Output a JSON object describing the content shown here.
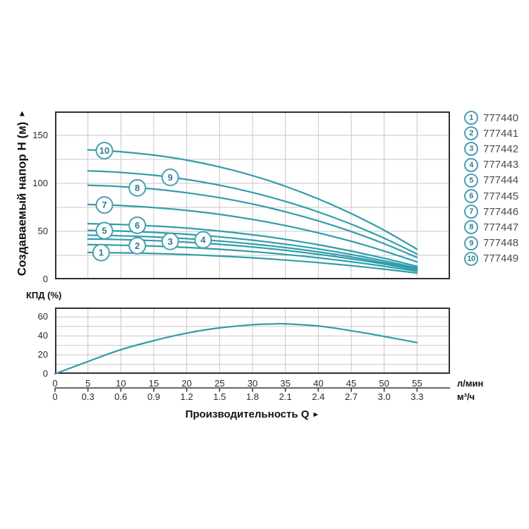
{
  "labels": {
    "y_axis_title": "Создаваемый напор H (м)",
    "y_axis_arrow": "▲",
    "x_axis_title": "Производительность Q",
    "x_axis_arrow": "►",
    "efficiency_title": "КПД (%)",
    "unit_lmin": "л/мин",
    "unit_m3h": "м³/ч"
  },
  "colors": {
    "curve": "#2f9daa",
    "grid": "#c7c7c7",
    "frame": "#2f2f2f",
    "tick_text": "#2b2b2b",
    "circle_stroke": "#4aa0b0",
    "circle_digit": "#2f7d8e",
    "circle_fill": "#ffffff",
    "legend_text": "#414d57",
    "axis_line": "#333333"
  },
  "legend": {
    "items": [
      {
        "num": "1",
        "model": "777440"
      },
      {
        "num": "2",
        "model": "777441"
      },
      {
        "num": "3",
        "model": "777442"
      },
      {
        "num": "4",
        "model": "777443"
      },
      {
        "num": "5",
        "model": "777444"
      },
      {
        "num": "6",
        "model": "777445"
      },
      {
        "num": "7",
        "model": "777446"
      },
      {
        "num": "8",
        "model": "777447"
      },
      {
        "num": "9",
        "model": "777448"
      },
      {
        "num": "10",
        "model": "777449"
      }
    ]
  },
  "chart_data": [
    {
      "type": "line",
      "title": "Напор-производительность (10 моделей)",
      "ylabel": "Создаваемый напор H (м)",
      "xlabel": "Производительность Q",
      "ylim": [
        0,
        175
      ],
      "xlim": [
        0,
        60
      ],
      "yticks": [
        0,
        50,
        100,
        150
      ],
      "ygrid_step": 25,
      "xgrid_step": 5,
      "grid": true,
      "legend_position": "right-outside",
      "x": [
        5,
        7.5,
        10,
        15,
        20,
        25,
        30,
        35,
        40,
        45,
        50,
        55
      ],
      "series": [
        {
          "name": "777440",
          "curve_label": "1",
          "label_x": 7,
          "values": [
            28.0,
            27.8,
            27.6,
            26.9,
            25.8,
            24.3,
            22.4,
            20.1,
            17.4,
            14.2,
            10.6,
            6.5
          ]
        },
        {
          "name": "777441",
          "curve_label": "2",
          "label_x": 12.5,
          "values": [
            36.1,
            35.9,
            35.5,
            34.6,
            33.2,
            31.3,
            28.9,
            25.9,
            22.4,
            18.3,
            13.6,
            8.4
          ]
        },
        {
          "name": "777442",
          "curve_label": "3",
          "label_x": 17.5,
          "values": [
            42.0,
            41.8,
            41.4,
            40.3,
            38.7,
            36.5,
            33.7,
            30.2,
            26.1,
            21.3,
            15.9,
            9.8
          ]
        },
        {
          "name": "777443",
          "curve_label": "4",
          "label_x": 22.5,
          "values": [
            46.0,
            45.8,
            45.4,
            44.2,
            42.4,
            39.9,
            36.8,
            33.1,
            28.6,
            23.4,
            17.4,
            10.7
          ]
        },
        {
          "name": "777444",
          "curve_label": "5",
          "label_x": 7.5,
          "values": [
            51.0,
            50.7,
            50.3,
            48.9,
            47.0,
            44.3,
            40.8,
            36.6,
            31.7,
            25.9,
            19.3,
            11.9
          ]
        },
        {
          "name": "777445",
          "curve_label": "6",
          "label_x": 12.5,
          "values": [
            58.0,
            57.6,
            57.1,
            55.6,
            53.4,
            50.3,
            46.4,
            41.7,
            36.0,
            29.4,
            21.9,
            13.5
          ]
        },
        {
          "name": "777446",
          "curve_label": "7",
          "label_x": 7.5,
          "values": [
            78.0,
            77.5,
            76.9,
            74.8,
            71.8,
            67.7,
            62.4,
            56.0,
            48.4,
            39.6,
            29.5,
            18.1
          ]
        },
        {
          "name": "777447",
          "curve_label": "8",
          "label_x": 12.5,
          "values": [
            98.0,
            97.5,
            96.6,
            94.1,
            90.2,
            85.1,
            78.5,
            70.4,
            60.9,
            49.8,
            37.1,
            22.8
          ]
        },
        {
          "name": "777448",
          "curve_label": "9",
          "label_x": 17.5,
          "values": [
            113.1,
            112.4,
            111.4,
            108.5,
            104.1,
            98.1,
            90.5,
            81.2,
            70.2,
            57.4,
            42.8,
            26.3
          ]
        },
        {
          "name": "777449",
          "curve_label": "10",
          "label_x": 7.5,
          "values": [
            135.0,
            134.2,
            133.0,
            129.5,
            124.3,
            117.1,
            108.1,
            97.0,
            83.8,
            68.5,
            51.1,
            31.4
          ]
        }
      ]
    },
    {
      "type": "line",
      "title": "КПД (%)",
      "ylabel": "КПД (%)",
      "ylim": [
        0,
        70
      ],
      "xlim": [
        0,
        60
      ],
      "yticks": [
        0,
        20,
        40,
        60
      ],
      "ygrid_step": 10,
      "xgrid_step": 5,
      "grid": true,
      "xticks_lmin": [
        "0",
        "5",
        "10",
        "15",
        "20",
        "25",
        "30",
        "35",
        "40",
        "45",
        "50",
        "55"
      ],
      "xticks_m3h": [
        "0",
        "0.3",
        "0.6",
        "0.9",
        "1.2",
        "1.5",
        "1.8",
        "2.1",
        "2.4",
        "2.7",
        "3.0",
        "3.3"
      ],
      "xtick_values": [
        0,
        5,
        10,
        15,
        20,
        25,
        30,
        35,
        40,
        45,
        50,
        55
      ],
      "series": [
        {
          "name": "КПД",
          "x": [
            0,
            5,
            10,
            15,
            20,
            25,
            30,
            33,
            35,
            40,
            45,
            50,
            55
          ],
          "values": [
            0,
            13,
            25.5,
            35,
            43,
            48.5,
            51.8,
            52.6,
            52.8,
            50.5,
            45.5,
            39.5,
            33
          ]
        }
      ]
    }
  ]
}
